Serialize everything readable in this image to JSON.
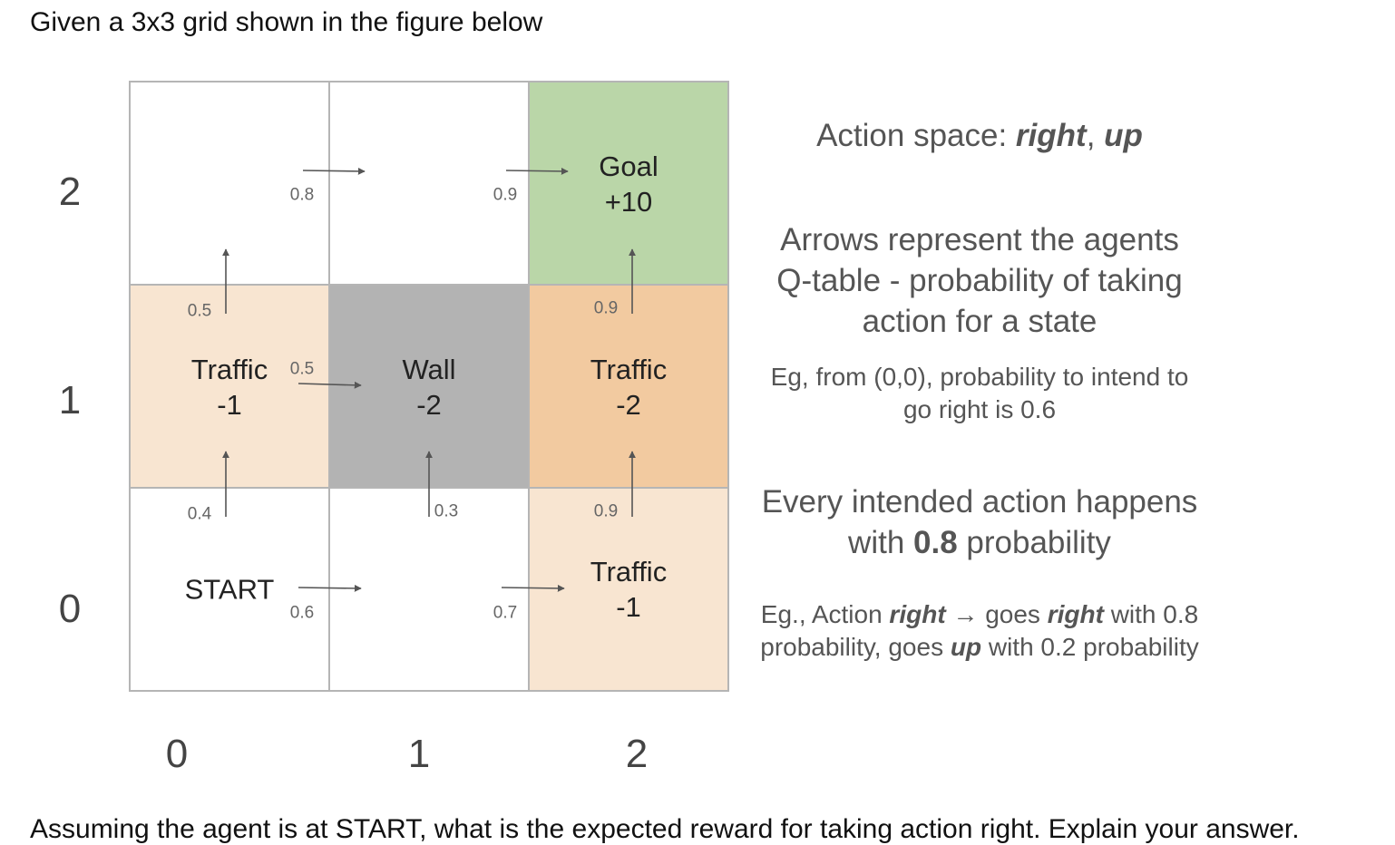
{
  "intro_text": "Given a 3x3 grid shown in the figure below",
  "cutoff_text": "Assuming the agent is at START, what is the expected reward for taking action right. Explain your answer.",
  "y_axis": [
    "2",
    "1",
    "0"
  ],
  "x_axis": [
    "0",
    "1",
    "2"
  ],
  "cells": [
    {
      "id": "r0c0",
      "row": 0,
      "col": 0,
      "lines": [],
      "fill": "#ffffff"
    },
    {
      "id": "r0c1",
      "row": 0,
      "col": 1,
      "lines": [],
      "fill": "#ffffff"
    },
    {
      "id": "r0c2",
      "row": 0,
      "col": 2,
      "lines": [
        "Goal",
        "+10"
      ],
      "fill": "#bad6a8"
    },
    {
      "id": "r1c0",
      "row": 1,
      "col": 0,
      "lines": [
        "Traffic",
        "-1"
      ],
      "fill": "#f8e5d1"
    },
    {
      "id": "r1c1",
      "row": 1,
      "col": 1,
      "lines": [
        "Wall",
        "-2"
      ],
      "fill": "#b3b3b3"
    },
    {
      "id": "r1c2",
      "row": 1,
      "col": 2,
      "lines": [
        "Traffic",
        "-2"
      ],
      "fill": "#f2caa0"
    },
    {
      "id": "r2c0",
      "row": 2,
      "col": 0,
      "lines": [
        "START"
      ],
      "fill": "#ffffff"
    },
    {
      "id": "r2c1",
      "row": 2,
      "col": 1,
      "lines": [],
      "fill": "#ffffff"
    },
    {
      "id": "r2c2",
      "row": 2,
      "col": 2,
      "lines": [
        "Traffic",
        "-1"
      ],
      "fill": "#f8e5d1"
    }
  ],
  "q_values": {
    "s00_right": "0.6",
    "s00_up": "0.4",
    "s10_right": "0.7",
    "s10_up": "0.3",
    "s20_up": "0.9",
    "s01_right": "0.5",
    "s01_up": "0.5",
    "s21_up": "0.9",
    "s02_right": "0.8",
    "s12_right": "0.9"
  },
  "notes": {
    "action_space_prefix": "Action space: ",
    "action_right": "right",
    "action_sep": ", ",
    "action_up": "up",
    "arrows_line1": "Arrows represent the agents",
    "arrows_line2": "Q-table - probability of taking",
    "arrows_line3": "action for a state",
    "eg1_line1": "Eg, from (0,0), probability to intend to",
    "eg1_line2": "go right is 0.6",
    "every_line1": "Every intended action happens",
    "every_with": "with ",
    "every_prob": "0.8",
    "every_suffix": " probability",
    "eg2_prefix": "Eg., Action ",
    "eg2_right1": "right",
    "eg2_mid": " → goes ",
    "eg2_right2": "right",
    "eg2_suffix": " with 0.8",
    "eg2_line2_prefix": "probability, goes ",
    "eg2_up": "up",
    "eg2_line2_suffix": " with 0.2 probability"
  },
  "colors": {
    "goal": "#bad6a8",
    "wall": "#b3b3b3",
    "traffic_light": "#f8e5d1",
    "traffic_dark": "#f2caa0",
    "grid_line": "#b5b5b5",
    "arrow": "#555555"
  }
}
